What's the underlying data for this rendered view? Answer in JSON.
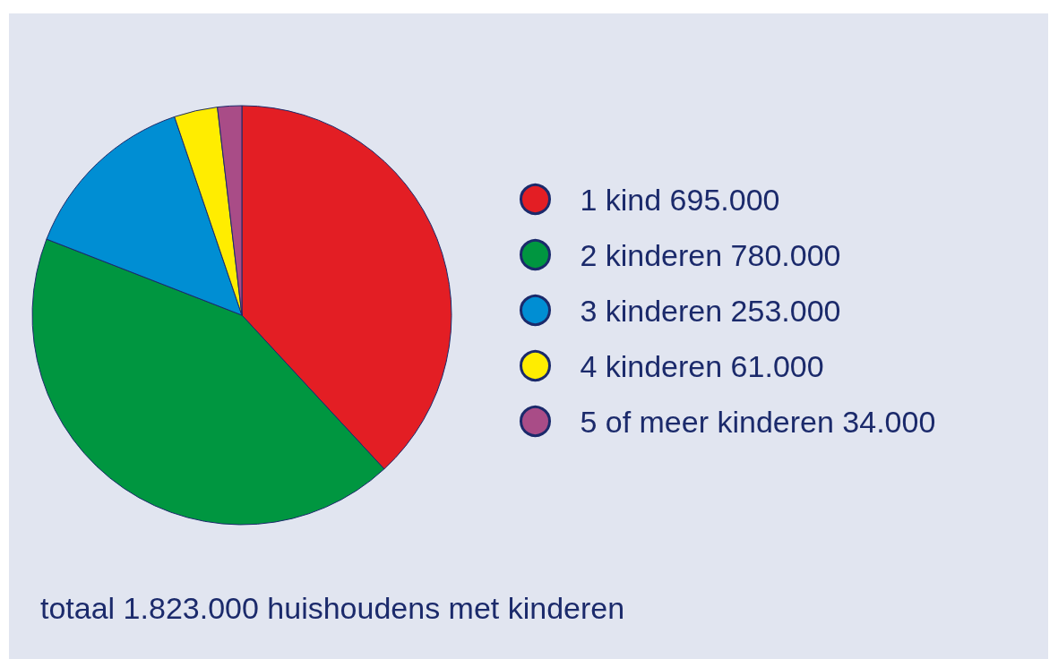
{
  "chart_data": {
    "type": "pie",
    "categories": [
      "1 kind",
      "2 kinderen",
      "3 kinderen",
      "4 kinderen",
      "5 of meer kinderen"
    ],
    "values": [
      695000,
      780000,
      253000,
      61000,
      34000
    ],
    "value_labels": [
      "695.000",
      "780.000",
      "253.000",
      "61.000",
      "34.000"
    ],
    "colors": [
      "#e31e24",
      "#009640",
      "#008ed3",
      "#ffed00",
      "#a94c87"
    ],
    "legend": "right",
    "annotations": [
      "totaal 1.823.000 huishoudens met kinderen"
    ]
  }
}
